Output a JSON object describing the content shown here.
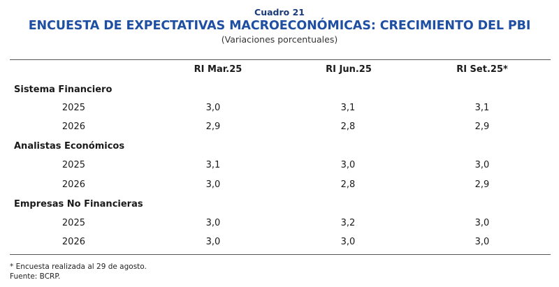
{
  "caption": "Cuadro 21",
  "title": "ENCUESTA DE EXPECTATIVAS MACROECONÓMICAS: CRECIMIENTO DEL PBI",
  "subtitle": "(Variaciones porcentuales)",
  "columns": [
    "RI Mar.25",
    "RI Jun.25",
    "RI Set.25*"
  ],
  "groups": [
    {
      "label": "Sistema Financiero",
      "rows": [
        {
          "year": "2025",
          "values": [
            "3,0",
            "3,1",
            "3,1"
          ]
        },
        {
          "year": "2026",
          "values": [
            "2,9",
            "2,8",
            "2,9"
          ]
        }
      ]
    },
    {
      "label": "Analistas Económicos",
      "rows": [
        {
          "year": "2025",
          "values": [
            "3,1",
            "3,0",
            "3,0"
          ]
        },
        {
          "year": "2026",
          "values": [
            "3,0",
            "2,8",
            "2,9"
          ]
        }
      ]
    },
    {
      "label": "Empresas No Financieras",
      "rows": [
        {
          "year": "2025",
          "values": [
            "3,0",
            "3,2",
            "3,0"
          ]
        },
        {
          "year": "2026",
          "values": [
            "3,0",
            "3,0",
            "3,0"
          ]
        }
      ]
    }
  ],
  "footnote": "* Encuesta realizada al 29 de agosto.",
  "source": "Fuente: BCRP."
}
